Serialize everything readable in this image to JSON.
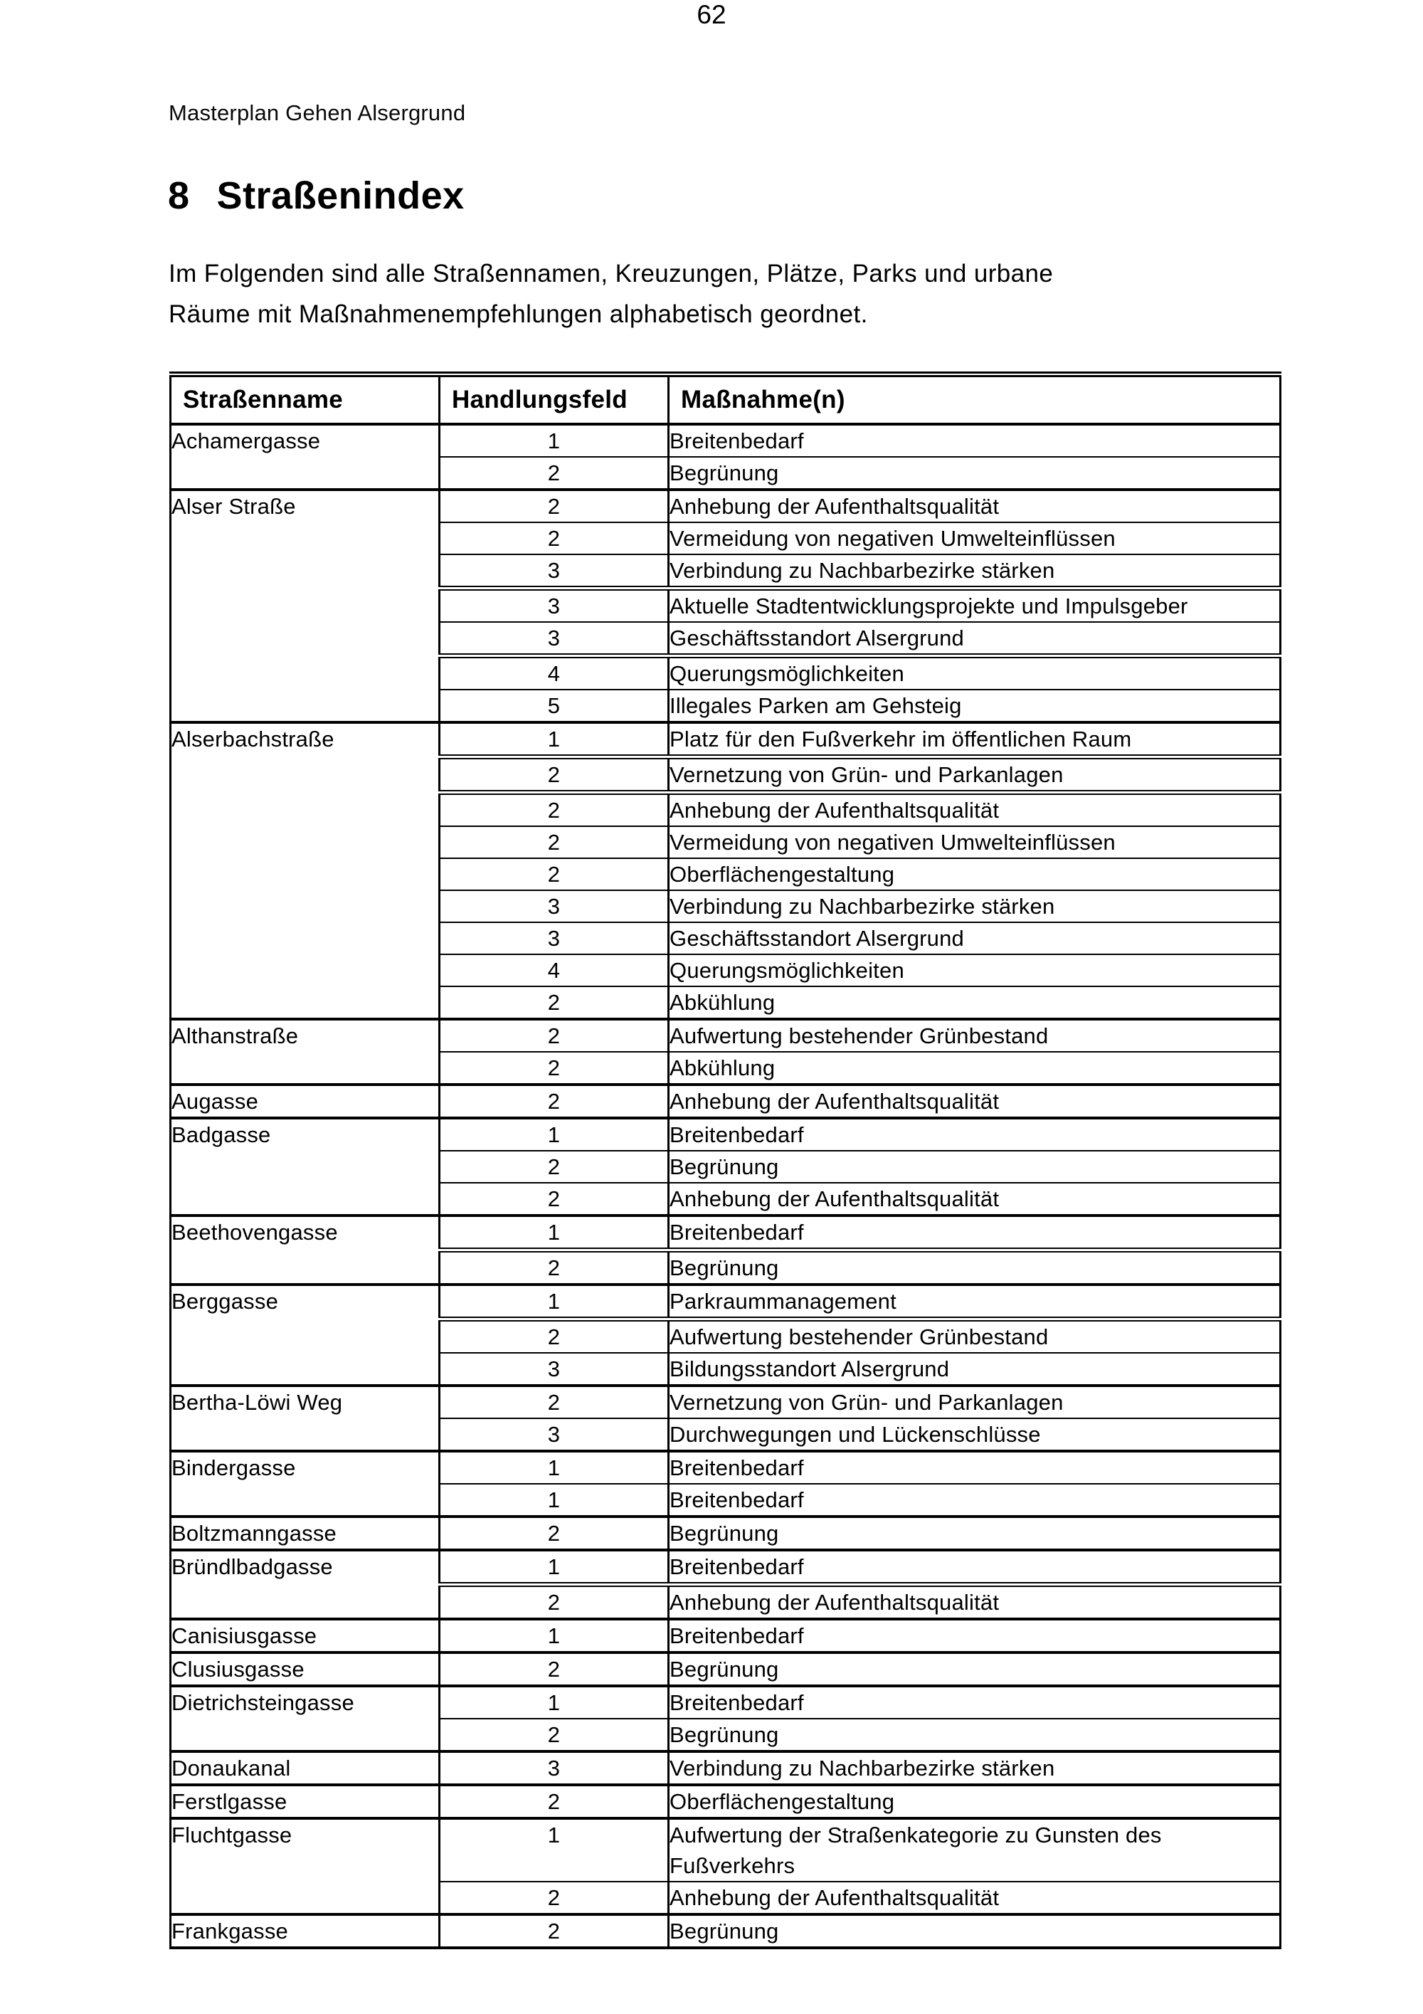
{
  "page": {
    "header": "Masterplan Gehen Alsergrund",
    "page_number": "62"
  },
  "section": {
    "number": "8",
    "title": "Straßenindex"
  },
  "intro": {
    "lines": [
      "Im Folgenden sind alle Straßennamen, Kreuzungen, Plätze, Parks und urbane",
      "Räume mit Maßnahmenempfehlungen alphabetisch geordnet."
    ]
  },
  "table": {
    "columns": [
      "Straßenname",
      "Handlungsfeld",
      "Maßnahme(n)"
    ],
    "groups": [
      {
        "street": "Achamergasse",
        "entries": [
          {
            "field": "1",
            "measure": "Breitenbedarf"
          },
          {
            "field": "2",
            "measure": "Begrünung"
          }
        ]
      },
      {
        "street": "Alser Straße",
        "entries": [
          {
            "field": "2",
            "measure": "Anhebung der Aufenthaltsqualität"
          },
          {
            "field": "2",
            "measure": "Vermeidung von negativen Umwelteinflüssen"
          },
          {
            "field": "3",
            "measure": "Verbindung zu Nachbarbezirke stärken"
          },
          {
            "field": "3",
            "measure": "Aktuelle Stadtentwicklungsprojekte und Impulsgeber"
          },
          {
            "field": "3",
            "measure": "Geschäftsstandort Alsergrund"
          },
          {
            "field": "4",
            "measure": "Querungsmöglichkeiten"
          },
          {
            "field": "5",
            "measure": "Illegales Parken am Gehsteig"
          }
        ]
      },
      {
        "street": "Alserbachstraße",
        "entries": [
          {
            "field": "1",
            "measure": "Platz für den Fußverkehr im öffentlichen Raum"
          },
          {
            "field": "2",
            "measure": "Vernetzung von Grün- und Parkanlagen"
          },
          {
            "field": "2",
            "measure": "Anhebung der Aufenthaltsqualität"
          },
          {
            "field": "2",
            "measure": "Vermeidung von negativen Umwelteinflüssen"
          },
          {
            "field": "2",
            "measure": "Oberflächengestaltung"
          },
          {
            "field": "3",
            "measure": "Verbindung zu Nachbarbezirke stärken"
          },
          {
            "field": "3",
            "measure": "Geschäftsstandort Alsergrund"
          },
          {
            "field": "4",
            "measure": "Querungsmöglichkeiten"
          },
          {
            "field": "2",
            "measure": "Abkühlung"
          }
        ]
      },
      {
        "street": "Althanstraße",
        "entries": [
          {
            "field": "2",
            "measure": "Aufwertung bestehender Grünbestand"
          },
          {
            "field": "2",
            "measure": "Abkühlung"
          }
        ]
      },
      {
        "street": "Augasse",
        "entries": [
          {
            "field": "2",
            "measure": "Anhebung der Aufenthaltsqualität"
          }
        ]
      },
      {
        "street": "Badgasse",
        "entries": [
          {
            "field": "1",
            "measure": "Breitenbedarf"
          },
          {
            "field": "2",
            "measure": "Begrünung"
          },
          {
            "field": "2",
            "measure": "Anhebung der Aufenthaltsqualität"
          }
        ]
      },
      {
        "street": "Beethovengasse",
        "entries": [
          {
            "field": "1",
            "measure": "Breitenbedarf"
          },
          {
            "field": "2",
            "measure": "Begrünung"
          }
        ]
      },
      {
        "street": "Berggasse",
        "entries": [
          {
            "field": "1",
            "measure": "Parkraummanagement"
          },
          {
            "field": "2",
            "measure": "Aufwertung bestehender Grünbestand"
          },
          {
            "field": "3",
            "measure": "Bildungsstandort Alsergrund"
          }
        ]
      },
      {
        "street": "Bertha-Löwi Weg",
        "entries": [
          {
            "field": "2",
            "measure": "Vernetzung von Grün- und Parkanlagen"
          },
          {
            "field": "3",
            "measure": "Durchwegungen und Lückenschlüsse"
          }
        ]
      },
      {
        "street": "Bindergasse",
        "entries": [
          {
            "field": "1",
            "measure": "Breitenbedarf"
          },
          {
            "field": "1",
            "measure": "Breitenbedarf"
          }
        ]
      },
      {
        "street": "Boltzmanngasse",
        "entries": [
          {
            "field": "2",
            "measure": "Begrünung"
          }
        ]
      },
      {
        "street": "Bründlbadgasse",
        "entries": [
          {
            "field": "1",
            "measure": "Breitenbedarf"
          },
          {
            "field": "2",
            "measure": "Anhebung der Aufenthaltsqualität"
          }
        ]
      },
      {
        "street": "Canisiusgasse",
        "entries": [
          {
            "field": "1",
            "measure": "Breitenbedarf"
          }
        ]
      },
      {
        "street": "Clusiusgasse",
        "entries": [
          {
            "field": "2",
            "measure": "Begrünung"
          }
        ]
      },
      {
        "street": "Dietrichsteingasse",
        "entries": [
          {
            "field": "1",
            "measure": "Breitenbedarf"
          },
          {
            "field": "2",
            "measure": "Begrünung"
          }
        ]
      },
      {
        "street": "Donaukanal",
        "entries": [
          {
            "field": "3",
            "measure": "Verbindung zu Nachbarbezirke stärken"
          }
        ]
      },
      {
        "street": "Ferstlgasse",
        "entries": [
          {
            "field": "2",
            "measure": "Oberflächengestaltung"
          }
        ]
      },
      {
        "street": "Fluchtgasse",
        "entries": [
          {
            "field": "1",
            "measure": "Aufwertung der Straßenkategorie zu Gunsten des Fußverkehrs"
          },
          {
            "field": "2",
            "measure": "Anhebung der Aufenthaltsqualität"
          }
        ]
      },
      {
        "street": "Frankgasse",
        "entries": [
          {
            "field": "2",
            "measure": "Begrünung"
          }
        ]
      }
    ]
  }
}
